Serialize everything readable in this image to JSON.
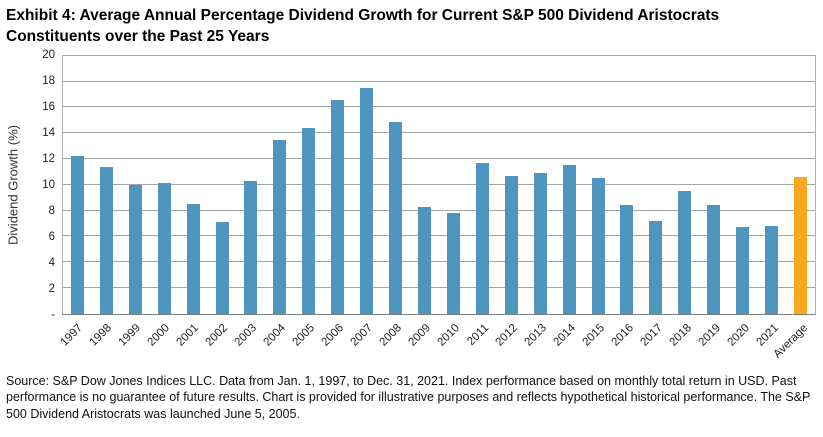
{
  "title": "Exhibit 4: Average Annual Percentage Dividend Growth for Current S&P 500 Dividend Aristocrats Constituents over the Past 25 Years",
  "footer_text": "Source: S&P Dow Jones Indices LLC. Data from Jan. 1, 1997, to Dec. 31, 2021. Index performance based on monthly total return in USD. Past performance is no guarantee of future results. Chart is provided for illustrative purposes and reflects hypothetical historical performance. The S&P 500 Dividend Aristocrats was launched June 5, 2005.",
  "colors": {
    "bar_blue": "#4E95BF",
    "bar_orange": "#FAA81D",
    "gridline": "#A6A6A6",
    "axis": "#7F7F7F"
  },
  "chart_data": {
    "type": "bar",
    "title": "Exhibit 4: Average Annual Percentage Dividend Growth for Current S&P 500 Dividend Aristocrats Constituents over the Past 25 Years",
    "xlabel": "",
    "ylabel": "Dividend Growth (%)",
    "ylim": [
      0,
      20
    ],
    "ytick_step": 2,
    "zero_tick_label": "-",
    "grid": true,
    "legend": false,
    "categories": [
      "1997",
      "1998",
      "1999",
      "2000",
      "2001",
      "2002",
      "2003",
      "2004",
      "2005",
      "2006",
      "2007",
      "2008",
      "2009",
      "2010",
      "2011",
      "2012",
      "2013",
      "2014",
      "2015",
      "2016",
      "2017",
      "2018",
      "2019",
      "2020",
      "2021",
      "Average"
    ],
    "values": [
      12.2,
      11.4,
      10.0,
      10.1,
      8.5,
      7.1,
      10.3,
      13.5,
      14.4,
      16.6,
      17.5,
      14.9,
      8.3,
      7.8,
      11.7,
      10.7,
      10.9,
      11.5,
      10.5,
      8.4,
      7.2,
      9.5,
      8.4,
      6.7,
      6.8,
      10.6
    ],
    "bar_color": "#4E95BF",
    "highlight_category": "Average",
    "highlight_color": "#FAA81D"
  }
}
